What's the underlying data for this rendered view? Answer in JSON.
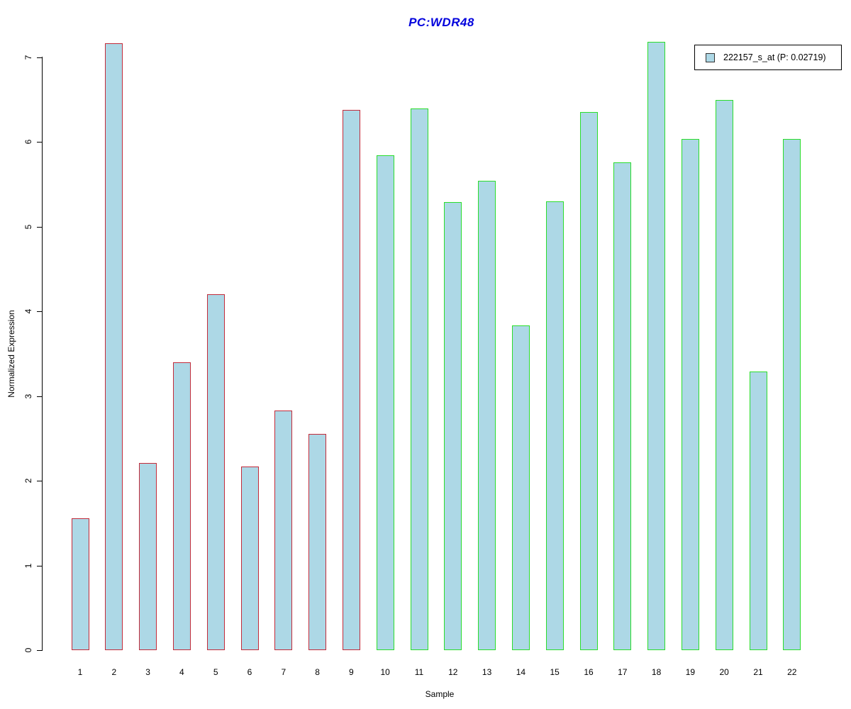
{
  "window": {
    "background": "#ffffff"
  },
  "chart_data": {
    "type": "bar",
    "title": "PC:WDR48",
    "title_color": "#0000dd",
    "xlabel": "Sample",
    "ylabel": "Normalized Expression",
    "ylim": [
      0,
      7
    ],
    "yticks": [
      0,
      1,
      2,
      3,
      4,
      5,
      6,
      7
    ],
    "grid": false,
    "legend_position": "top-right",
    "categories": [
      "1",
      "2",
      "3",
      "4",
      "5",
      "6",
      "7",
      "8",
      "9",
      "10",
      "11",
      "12",
      "13",
      "14",
      "15",
      "16",
      "17",
      "18",
      "19",
      "20",
      "21",
      "22"
    ],
    "series": [
      {
        "name": "222157_s_at (P: 0.02719)",
        "values": [
          1.56,
          7.16,
          2.21,
          3.4,
          4.2,
          2.17,
          2.83,
          2.55,
          6.38,
          5.84,
          6.39,
          5.29,
          5.54,
          3.83,
          5.3,
          6.35,
          5.76,
          7.18,
          6.03,
          6.49,
          3.29,
          6.03
        ]
      }
    ],
    "colors": {
      "bar_fill": "#add8e6",
      "group1_border": "#c32b3a",
      "group2_border": "#2bdd2b",
      "axis": "#000000"
    },
    "group1_count": 9,
    "group_note": "bars 1-9 red outline, bars 10-22 green outline"
  },
  "legend": {
    "swatch_color": "#add8e6"
  }
}
